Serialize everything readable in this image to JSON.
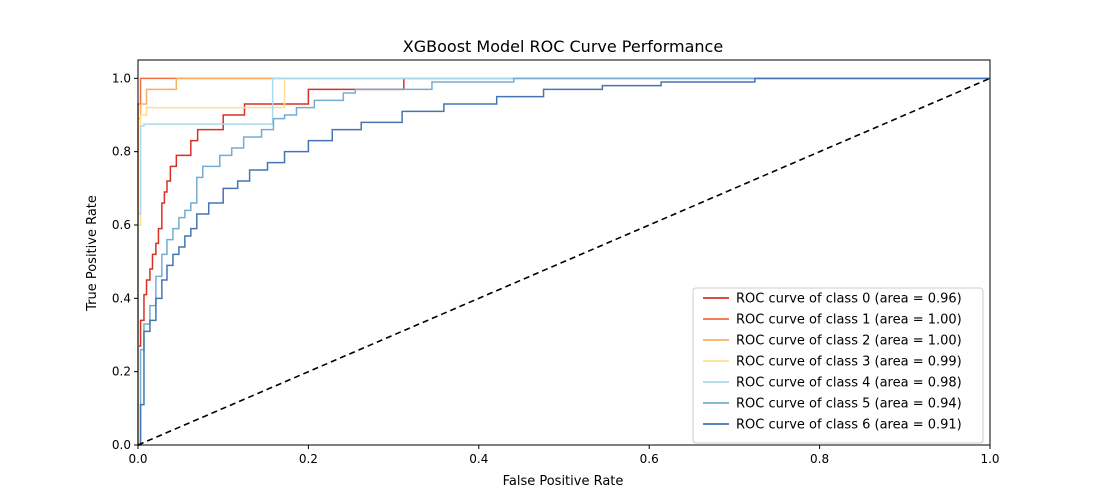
{
  "chart_data": {
    "type": "line",
    "title": "XGBoost Model ROC Curve Performance",
    "xlabel": "False Positive Rate",
    "ylabel": "True Positive Rate",
    "xlim": [
      0.0,
      1.0
    ],
    "ylim": [
      0.0,
      1.05
    ],
    "xticks": [
      "0.0",
      "0.2",
      "0.4",
      "0.6",
      "0.8",
      "1.0"
    ],
    "yticks": [
      "0.0",
      "0.2",
      "0.4",
      "0.6",
      "0.8",
      "1.0"
    ],
    "grid": false,
    "legend_position": "lower-right",
    "series": [
      {
        "name": "ROC curve of class 0 (area = 0.96)",
        "color": "#d73027",
        "x": [
          0.0,
          0.0,
          0.003,
          0.003,
          0.007,
          0.007,
          0.01,
          0.01,
          0.014,
          0.014,
          0.017,
          0.017,
          0.021,
          0.021,
          0.024,
          0.024,
          0.028,
          0.028,
          0.031,
          0.031,
          0.034,
          0.034,
          0.038,
          0.038,
          0.045,
          0.045,
          0.052,
          0.052,
          0.062,
          0.062,
          0.07,
          0.07,
          0.1,
          0.1,
          0.125,
          0.125,
          0.2,
          0.2,
          0.312,
          0.312,
          1.0
        ],
        "y": [
          0.0,
          0.27,
          0.27,
          0.34,
          0.34,
          0.41,
          0.41,
          0.45,
          0.45,
          0.48,
          0.48,
          0.52,
          0.52,
          0.55,
          0.55,
          0.59,
          0.59,
          0.66,
          0.66,
          0.69,
          0.69,
          0.72,
          0.72,
          0.76,
          0.76,
          0.79,
          0.79,
          0.79,
          0.79,
          0.83,
          0.83,
          0.86,
          0.86,
          0.9,
          0.9,
          0.93,
          0.93,
          0.97,
          0.97,
          1.0,
          1.0
        ]
      },
      {
        "name": "ROC curve of class 1 (area = 1.00)",
        "color": "#f46d43",
        "x": [
          0.0,
          0.0,
          0.003,
          0.003,
          1.0
        ],
        "y": [
          0.0,
          0.93,
          0.93,
          1.0,
          1.0
        ]
      },
      {
        "name": "ROC curve of class 2 (area = 1.00)",
        "color": "#fdae61",
        "x": [
          0.0,
          0.0,
          0.003,
          0.003,
          0.01,
          0.01,
          0.045,
          0.045,
          1.0
        ],
        "y": [
          0.0,
          0.89,
          0.89,
          0.93,
          0.93,
          0.97,
          0.97,
          1.0,
          1.0
        ]
      },
      {
        "name": "ROC curve of class 3 (area = 0.99)",
        "color": "#fee090",
        "x": [
          0.0,
          0.0,
          0.003,
          0.003,
          0.01,
          0.01,
          0.172,
          0.172,
          1.0
        ],
        "y": [
          0.0,
          0.6,
          0.6,
          0.9,
          0.9,
          0.92,
          0.92,
          1.0,
          1.0
        ]
      },
      {
        "name": "ROC curve of class 4 (area = 0.98)",
        "color": "#abd9e9",
        "x": [
          0.0,
          0.0,
          0.003,
          0.003,
          0.007,
          0.007,
          0.158,
          0.158,
          1.0
        ],
        "y": [
          0.0,
          0.63,
          0.63,
          0.87,
          0.87,
          0.875,
          0.875,
          1.0,
          1.0
        ]
      },
      {
        "name": "ROC curve of class 5 (area = 0.94)",
        "color": "#74add1",
        "x": [
          0.0,
          0.003,
          0.003,
          0.007,
          0.007,
          0.014,
          0.014,
          0.021,
          0.021,
          0.028,
          0.028,
          0.034,
          0.034,
          0.041,
          0.041,
          0.048,
          0.048,
          0.055,
          0.055,
          0.062,
          0.062,
          0.069,
          0.069,
          0.076,
          0.076,
          0.096,
          0.096,
          0.11,
          0.11,
          0.124,
          0.124,
          0.145,
          0.145,
          0.159,
          0.159,
          0.172,
          0.172,
          0.186,
          0.186,
          0.207,
          0.207,
          0.241,
          0.241,
          0.255,
          0.255,
          0.345,
          0.345,
          0.441,
          0.441,
          1.0
        ],
        "y": [
          0.0,
          0.0,
          0.26,
          0.26,
          0.33,
          0.33,
          0.38,
          0.38,
          0.46,
          0.46,
          0.52,
          0.52,
          0.56,
          0.56,
          0.59,
          0.59,
          0.62,
          0.62,
          0.64,
          0.64,
          0.66,
          0.66,
          0.73,
          0.73,
          0.76,
          0.76,
          0.79,
          0.79,
          0.81,
          0.81,
          0.84,
          0.84,
          0.86,
          0.86,
          0.89,
          0.89,
          0.9,
          0.9,
          0.92,
          0.92,
          0.94,
          0.94,
          0.96,
          0.96,
          0.97,
          0.97,
          0.99,
          0.99,
          1.0,
          1.0
        ]
      },
      {
        "name": "ROC curve of class 6 (area = 0.91)",
        "color": "#4575b4",
        "x": [
          0.0,
          0.003,
          0.003,
          0.007,
          0.007,
          0.014,
          0.014,
          0.021,
          0.021,
          0.028,
          0.028,
          0.034,
          0.034,
          0.041,
          0.041,
          0.048,
          0.048,
          0.055,
          0.055,
          0.062,
          0.062,
          0.069,
          0.069,
          0.083,
          0.083,
          0.1,
          0.1,
          0.117,
          0.117,
          0.131,
          0.131,
          0.152,
          0.152,
          0.172,
          0.172,
          0.2,
          0.2,
          0.228,
          0.228,
          0.262,
          0.262,
          0.31,
          0.31,
          0.359,
          0.359,
          0.421,
          0.421,
          0.476,
          0.476,
          0.545,
          0.545,
          0.614,
          0.614,
          0.724,
          0.724,
          1.0
        ],
        "y": [
          0.0,
          0.0,
          0.11,
          0.11,
          0.31,
          0.31,
          0.34,
          0.34,
          0.4,
          0.4,
          0.45,
          0.45,
          0.49,
          0.49,
          0.52,
          0.52,
          0.54,
          0.54,
          0.57,
          0.57,
          0.59,
          0.59,
          0.63,
          0.63,
          0.66,
          0.66,
          0.7,
          0.7,
          0.72,
          0.72,
          0.75,
          0.75,
          0.77,
          0.77,
          0.8,
          0.8,
          0.83,
          0.83,
          0.86,
          0.86,
          0.88,
          0.88,
          0.91,
          0.91,
          0.93,
          0.93,
          0.95,
          0.95,
          0.97,
          0.97,
          0.98,
          0.98,
          0.99,
          0.99,
          1.0,
          1.0
        ]
      },
      {
        "name": "",
        "color": "#000000",
        "dashed": true,
        "x": [
          0.0,
          1.0
        ],
        "y": [
          0.0,
          1.0
        ]
      }
    ]
  }
}
